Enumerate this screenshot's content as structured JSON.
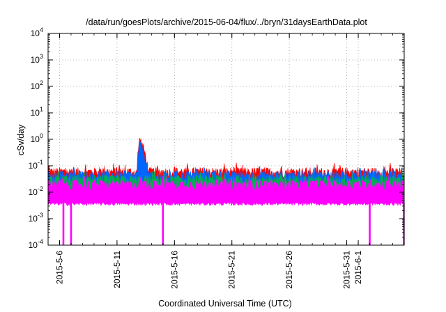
{
  "chart_data": {
    "type": "area",
    "title": "/data/run/goesPlots/archive/2015-06-04/flux/../bryn/31daysEarthData.plot",
    "xlabel": "Coordinated Universal Time (UTC)",
    "ylabel": "cSv/day",
    "y_scale": "log",
    "ylim": [
      0.0001,
      10000
    ],
    "xlim": [
      "2015-05-05",
      "2015-06-04"
    ],
    "grid": true,
    "x_ticks": [
      "2015-5-6",
      "2015-5-11",
      "2015-5-16",
      "2015-5-21",
      "2015-5-26",
      "2015-5-31",
      "2015-6-1"
    ],
    "y_ticks": [
      {
        "base": "10",
        "exp": "-4"
      },
      {
        "base": "10",
        "exp": "-3"
      },
      {
        "base": "10",
        "exp": "-2"
      },
      {
        "base": "10",
        "exp": "-1"
      },
      {
        "base": "10",
        "exp": "0"
      },
      {
        "base": "10",
        "exp": "1"
      },
      {
        "base": "10",
        "exp": "2"
      },
      {
        "base": "10",
        "exp": "3"
      },
      {
        "base": "10",
        "exp": "4"
      }
    ],
    "series": [
      {
        "color": "#ff0000",
        "typical": 0.06,
        "spike": {
          "start": "2015-05-12T18:00",
          "peak_time": "2015-05-13T00:00",
          "peak": 1.0,
          "end": "2015-05-13T18:00"
        }
      },
      {
        "color": "#0066ff",
        "typical": 0.045,
        "spike": {
          "start": "2015-05-12T18:00",
          "peak_time": "2015-05-13T00:00",
          "peak": 0.7,
          "end": "2015-05-13T18:00"
        }
      },
      {
        "color": "#00b050",
        "typical": 0.03
      },
      {
        "color": "#ff00ff",
        "typical": 0.02,
        "floor": 0.004,
        "dropouts": [
          "2015-05-06T08:00",
          "2015-05-07T00:00",
          "2015-05-15T00:00",
          "2015-06-02T00:00",
          "2015-06-04T23:00"
        ]
      }
    ]
  }
}
